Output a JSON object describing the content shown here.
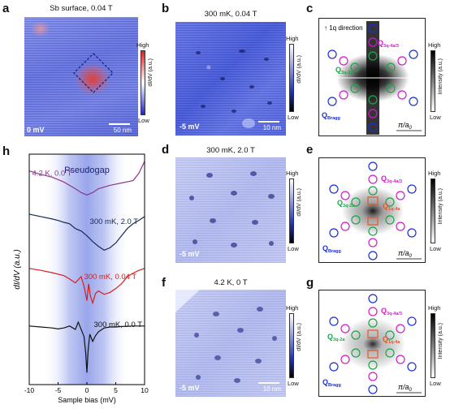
{
  "panels": {
    "a": {
      "letter": "a",
      "title": "Sb surface, 0.04 T",
      "bias": "0 mV",
      "scale": "50 nm",
      "cbar_high": "High",
      "cbar_low": "Low",
      "cbar_label": "dI/dV (a.u.)"
    },
    "b": {
      "letter": "b",
      "title": "300 mK, 0.04 T",
      "bias": "-5 mV",
      "scale": "10 nm",
      "cbar_high": "High",
      "cbar_low": "Low",
      "cbar_label": "dI/dV (a.u.)"
    },
    "c": {
      "letter": "c",
      "direction": "1q direction",
      "q_bragg": "Q",
      "q_bragg_sub": "Bragg",
      "q_3q2a": "Q",
      "q_3q2a_sub": "3q-2a",
      "q_3q4a3": "Q",
      "q_3q4a3_sub": "3q-4a/3",
      "pi_label": "π/a",
      "pi_sub": "0",
      "cbar_high": "High",
      "cbar_low": "Low",
      "cbar_label": "Intensity (a.u.)"
    },
    "d": {
      "letter": "d",
      "title": "300 mK, 2.0 T",
      "bias": "-5 mV",
      "cbar_high": "High",
      "cbar_low": "Low",
      "cbar_label": "dI/dV (a.u.)"
    },
    "e": {
      "letter": "e",
      "q_bragg": "Q",
      "q_bragg_sub": "Bragg",
      "q_3q2a": "Q",
      "q_3q2a_sub": "3q-2a",
      "q_3q4a3": "Q",
      "q_3q4a3_sub": "3q-4a/3",
      "q_1q4a": "Q",
      "q_1q4a_sub": "1q-4a",
      "pi_label": "π/a",
      "pi_sub": "0",
      "cbar_high": "High",
      "cbar_low": "Low",
      "cbar_label": "Intensity (a.u.)"
    },
    "f": {
      "letter": "f",
      "title": "4.2 K, 0 T",
      "bias": "-5 mV",
      "scale": "10 nm",
      "cbar_high": "High",
      "cbar_low": "Low",
      "cbar_label": "dI/dV (a.u.)"
    },
    "g": {
      "letter": "g",
      "q_bragg": "Q",
      "q_bragg_sub": "Bragg",
      "q_3q2a": "Q",
      "q_3q2a_sub": "3q-2a",
      "q_3q4a3": "Q",
      "q_3q4a3_sub": "3q-4a/3",
      "q_1q4a": "Q",
      "q_1q4a_sub": "1q-4a",
      "pi_label": "π/a",
      "pi_sub": "0",
      "cbar_high": "High",
      "cbar_low": "Low",
      "cbar_label": "Intensity (a.u.)"
    },
    "h": {
      "letter": "h",
      "pseudogap": "Pseudogap"
    }
  },
  "chart_data": {
    "type": "line",
    "xlabel": "Sample bias (mV)",
    "ylabel": "dI/dV (a.u.)",
    "xlim": [
      -10,
      10
    ],
    "xticks": [
      -10,
      -5,
      0,
      5,
      10
    ],
    "shaded_region": [
      -7.5,
      7.5
    ],
    "series": [
      {
        "name": "4.2 K, 0.0 T",
        "color": "#8a3a8a",
        "offset": 3.3,
        "x": [
          -10,
          -8,
          -6,
          -4,
          -2,
          -1,
          0,
          1,
          2,
          4,
          6,
          8,
          9,
          10
        ],
        "y": [
          0.55,
          0.48,
          0.42,
          0.32,
          0.18,
          0.1,
          0.05,
          0.1,
          0.18,
          0.25,
          0.3,
          0.35,
          0.5,
          0.75
        ]
      },
      {
        "name": "300 mK, 2.0 T",
        "color": "#152a55",
        "offset": 2.2,
        "x": [
          -10,
          -8,
          -6,
          -5,
          -4,
          -3,
          -2,
          -1,
          0,
          1,
          2,
          3,
          4,
          5,
          6,
          7,
          8,
          9,
          10
        ],
        "y": [
          0.75,
          0.7,
          0.65,
          0.62,
          0.58,
          0.55,
          0.45,
          0.4,
          0.3,
          0.18,
          0.08,
          0.0,
          0.05,
          0.15,
          0.3,
          0.45,
          0.55,
          0.62,
          0.7
        ]
      },
      {
        "name": "300 mK, 0.04 T",
        "color": "#d81e1e",
        "offset": 1.1,
        "x": [
          -10,
          -8,
          -6,
          -4,
          -3,
          -2,
          -1,
          -0.5,
          0,
          0.3,
          0.6,
          1,
          1.5,
          2,
          3,
          4,
          5,
          6,
          7,
          8,
          9,
          10
        ],
        "y": [
          0.72,
          0.68,
          0.63,
          0.57,
          0.5,
          0.42,
          0.55,
          0.35,
          0.05,
          0.4,
          0.15,
          0.0,
          0.2,
          0.25,
          0.18,
          0.22,
          0.3,
          0.4,
          0.55,
          0.62,
          0.68,
          0.72
        ]
      },
      {
        "name": "300 mK, 0.0 T",
        "color": "#111111",
        "offset": 0.0,
        "x": [
          -10,
          -8,
          -6,
          -5,
          -4,
          -3,
          -2,
          -1.5,
          -1,
          -0.5,
          -0.2,
          0,
          0.2,
          0.5,
          1,
          1.5,
          2,
          3,
          4,
          5,
          6,
          8,
          10
        ],
        "y": [
          0.62,
          0.6,
          0.58,
          0.56,
          0.58,
          0.62,
          0.55,
          0.7,
          0.55,
          0.4,
          0.05,
          -0.35,
          0.1,
          0.45,
          0.3,
          0.42,
          0.5,
          0.58,
          0.6,
          0.6,
          0.61,
          0.62,
          0.62
        ]
      }
    ]
  }
}
